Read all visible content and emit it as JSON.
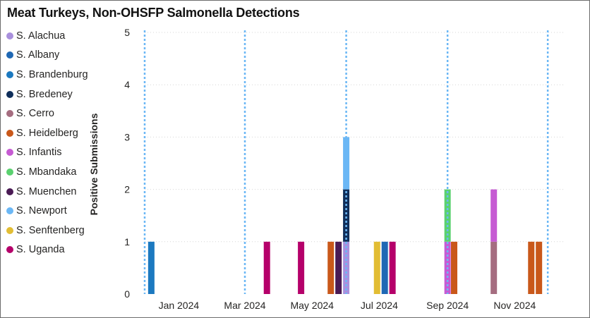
{
  "title": "Meat Turkeys, Non-OHSFP Salmonella Detections",
  "legend": [
    {
      "name": "S. Alachua",
      "color": "#A990DD"
    },
    {
      "name": "S. Albany",
      "color": "#1F68B4"
    },
    {
      "name": "S. Brandenburg",
      "color": "#1C79C0"
    },
    {
      "name": "S. Bredeney",
      "color": "#0F2E5A"
    },
    {
      "name": "S. Cerro",
      "color": "#A56D80"
    },
    {
      "name": "S. Heidelberg",
      "color": "#C9581A"
    },
    {
      "name": "S. Infantis",
      "color": "#C65BD3"
    },
    {
      "name": "S. Mbandaka",
      "color": "#5AD16F"
    },
    {
      "name": "S. Muenchen",
      "color": "#4A1A54"
    },
    {
      "name": "S. Newport",
      "color": "#6BB7F5"
    },
    {
      "name": "S. Senftenberg",
      "color": "#E2BD34"
    },
    {
      "name": "S. Uganda",
      "color": "#B5006A"
    }
  ],
  "chart_data": {
    "type": "bar",
    "stacked": true,
    "title": "Meat Turkeys, Non-OHSFP Salmonella Detections",
    "xlabel": "",
    "ylabel": "Positive Submissions",
    "ylim": [
      0,
      5
    ],
    "yticks": [
      0,
      1,
      2,
      3,
      4,
      5
    ],
    "xlim": [
      "2023-12-01",
      "2024-12-15"
    ],
    "xticks": [
      {
        "label": "Jan 2024",
        "date": "2024-01-01"
      },
      {
        "label": "Mar 2024",
        "date": "2024-03-01"
      },
      {
        "label": "May 2024",
        "date": "2024-05-01"
      },
      {
        "label": "Jul 2024",
        "date": "2024-07-01"
      },
      {
        "label": "Sep 2024",
        "date": "2024-09-01"
      },
      {
        "label": "Nov 2024",
        "date": "2024-11-01"
      }
    ],
    "reference_lines": [
      "2023-12-01",
      "2024-03-01",
      "2024-06-01",
      "2024-09-01",
      "2024-12-01"
    ],
    "grid": true,
    "legend_position": "left",
    "bars": [
      {
        "date": "2023-12-07",
        "segments": [
          {
            "series": "S. Brandenburg",
            "value": 1
          }
        ]
      },
      {
        "date": "2024-03-21",
        "segments": [
          {
            "series": "S. Uganda",
            "value": 1
          }
        ]
      },
      {
        "date": "2024-04-21",
        "segments": [
          {
            "series": "S. Uganda",
            "value": 1
          }
        ]
      },
      {
        "date": "2024-05-18",
        "segments": [
          {
            "series": "S. Heidelberg",
            "value": 1
          }
        ]
      },
      {
        "date": "2024-05-25",
        "segments": [
          {
            "series": "S. Muenchen",
            "value": 1
          }
        ]
      },
      {
        "date": "2024-06-01",
        "segments": [
          {
            "series": "S. Alachua",
            "value": 1
          },
          {
            "series": "S. Bredeney",
            "value": 1
          },
          {
            "series": "S. Newport",
            "value": 1
          }
        ]
      },
      {
        "date": "2024-06-29",
        "segments": [
          {
            "series": "S. Senftenberg",
            "value": 1
          }
        ]
      },
      {
        "date": "2024-07-06",
        "segments": [
          {
            "series": "S. Albany",
            "value": 1
          }
        ]
      },
      {
        "date": "2024-07-13",
        "segments": [
          {
            "series": "S. Uganda",
            "value": 1
          }
        ]
      },
      {
        "date": "2024-09-01",
        "segments": [
          {
            "series": "S. Infantis",
            "value": 1
          },
          {
            "series": "S. Mbandaka",
            "value": 1
          }
        ]
      },
      {
        "date": "2024-09-07",
        "segments": [
          {
            "series": "S. Heidelberg",
            "value": 1
          }
        ]
      },
      {
        "date": "2024-10-13",
        "segments": [
          {
            "series": "S. Cerro",
            "value": 1
          },
          {
            "series": "S. Infantis",
            "value": 1
          }
        ]
      },
      {
        "date": "2024-11-16",
        "segments": [
          {
            "series": "S. Heidelberg",
            "value": 1
          }
        ]
      },
      {
        "date": "2024-11-23",
        "segments": [
          {
            "series": "S. Heidelberg",
            "value": 1
          }
        ]
      }
    ]
  }
}
